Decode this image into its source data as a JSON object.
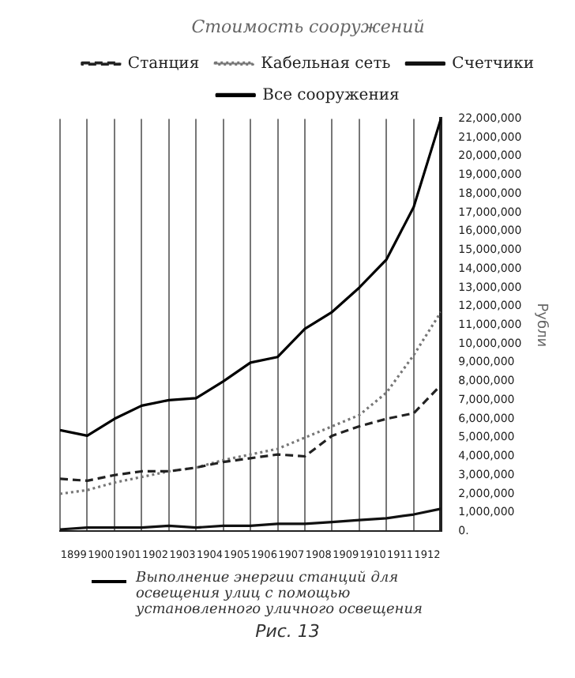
{
  "chart_data": {
    "type": "line",
    "legend_title": "Стоимость сооружений",
    "ylabel": "Рубли",
    "x": [
      1899,
      1900,
      1901,
      1902,
      1903,
      1904,
      1905,
      1906,
      1907,
      1908,
      1909,
      1910,
      1911,
      1912,
      1913
    ],
    "xlim": [
      1899,
      1913
    ],
    "xticks": [
      {
        "value": 1899.5,
        "label": "1899"
      },
      {
        "value": 1900.5,
        "label": "1900"
      },
      {
        "value": 1901.5,
        "label": "1901"
      },
      {
        "value": 1902.5,
        "label": "1902"
      },
      {
        "value": 1903.5,
        "label": "1903"
      },
      {
        "value": 1904.5,
        "label": "1904"
      },
      {
        "value": 1905.5,
        "label": "1905"
      },
      {
        "value": 1906.5,
        "label": "1906"
      },
      {
        "value": 1907.5,
        "label": "1907"
      },
      {
        "value": 1908.5,
        "label": "1908"
      },
      {
        "value": 1909.5,
        "label": "1909"
      },
      {
        "value": 1910.5,
        "label": "1910"
      },
      {
        "value": 1911.5,
        "label": "1911"
      },
      {
        "value": 1912.5,
        "label": "1912"
      }
    ],
    "ylim": [
      0,
      22000000
    ],
    "yticks": [
      {
        "value": 0,
        "label": "0."
      },
      {
        "value": 1000000,
        "label": "1,000,000"
      },
      {
        "value": 2000000,
        "label": "2,000,000"
      },
      {
        "value": 3000000,
        "label": "3,000,000"
      },
      {
        "value": 4000000,
        "label": "4,000,000"
      },
      {
        "value": 5000000,
        "label": "5,000,000"
      },
      {
        "value": 6000000,
        "label": "6,000,000"
      },
      {
        "value": 7000000,
        "label": "7,000,000"
      },
      {
        "value": 8000000,
        "label": "8,000,000"
      },
      {
        "value": 9000000,
        "label": "9,000,000"
      },
      {
        "value": 10000000,
        "label": "10,000,000"
      },
      {
        "value": 11000000,
        "label": "11,000,000"
      },
      {
        "value": 12000000,
        "label": "12,000,000"
      },
      {
        "value": 13000000,
        "label": "13,000,000"
      },
      {
        "value": 14000000,
        "label": "14,000,000"
      },
      {
        "value": 15000000,
        "label": "15,000,000"
      },
      {
        "value": 16000000,
        "label": "16,000,000"
      },
      {
        "value": 17000000,
        "label": "17,000,000"
      },
      {
        "value": 18000000,
        "label": "18,000,000"
      },
      {
        "value": 19000000,
        "label": "19,000,000"
      },
      {
        "value": 20000000,
        "label": "20,000,000"
      },
      {
        "value": 21000000,
        "label": "21,000,000"
      },
      {
        "value": 22000000,
        "label": "22,000,000"
      }
    ],
    "grid": "x",
    "legend": "top",
    "marker": "none",
    "series": [
      {
        "name": "Станция",
        "color": "#222222",
        "line_style": "dashed",
        "values": [
          2800000,
          2700000,
          3000000,
          3200000,
          3200000,
          3400000,
          3700000,
          3900000,
          4100000,
          4000000,
          5100000,
          5600000,
          6000000,
          6300000,
          7800000
        ]
      },
      {
        "name": "Кабельная сеть",
        "color": "#777777",
        "line_style": "dotted",
        "values": [
          2000000,
          2200000,
          2600000,
          2900000,
          3200000,
          3400000,
          3800000,
          4100000,
          4400000,
          5000000,
          5600000,
          6200000,
          7400000,
          9400000,
          11700000
        ]
      },
      {
        "name": "Счетчики",
        "color": "#111111",
        "line_style": "solid",
        "values": [
          100000,
          200000,
          200000,
          200000,
          300000,
          200000,
          300000,
          300000,
          400000,
          400000,
          500000,
          600000,
          700000,
          900000,
          1200000
        ]
      },
      {
        "name": "Все сооружения",
        "color": "#000000",
        "line_style": "solid",
        "values": [
          5400000,
          5100000,
          6000000,
          6700000,
          7000000,
          7100000,
          8000000,
          9000000,
          9300000,
          10800000,
          11700000,
          13000000,
          14500000,
          17300000,
          22000000
        ]
      }
    ],
    "annotations": [
      "Выполнение энергии станций для освещения улиц с помощью установленного уличного освещения",
      "Рис. 13"
    ]
  }
}
